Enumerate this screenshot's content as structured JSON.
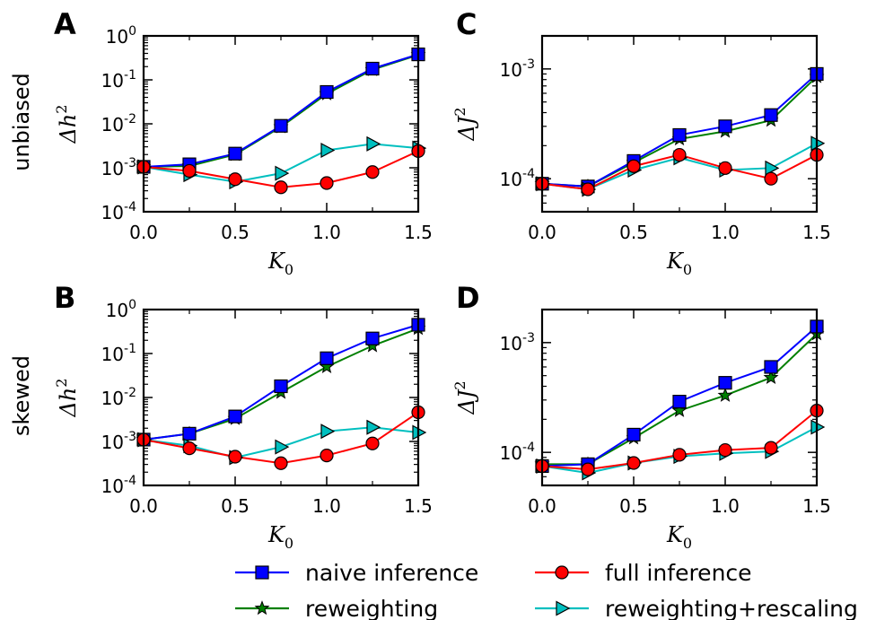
{
  "legend": [
    {
      "key": "naive",
      "label": "naive inference",
      "color": "#0000ff",
      "marker": "square"
    },
    {
      "key": "full",
      "label": "full inference",
      "color": "#ff0000",
      "marker": "circle"
    },
    {
      "key": "rew",
      "label": "reweighting",
      "color": "#007f00",
      "marker": "star"
    },
    {
      "key": "resc",
      "label": "reweighting+rescaling",
      "color": "#00bfbf",
      "marker": "triangle-right"
    }
  ],
  "rows": [
    {
      "label": "unbiased"
    },
    {
      "label": "skewed"
    }
  ],
  "chart_data": [
    {
      "panel": "A",
      "type": "line",
      "yscale": "log",
      "xlabel": "K",
      "xlabel_sub": "0",
      "ylabel": "Δh",
      "ylabel_sup": "2",
      "xlim": [
        0,
        1.5
      ],
      "ylim": [
        0.0001,
        1
      ],
      "xticks": [
        "0.0",
        "0.5",
        "1.0",
        "1.5"
      ],
      "yticks": [
        {
          "base": "10",
          "exp": "-4",
          "v": 0.0001
        },
        {
          "base": "10",
          "exp": "-3",
          "v": 0.001
        },
        {
          "base": "10",
          "exp": "-2",
          "v": 0.01
        },
        {
          "base": "10",
          "exp": "-1",
          "v": 0.1
        },
        {
          "base": "10",
          "exp": "0",
          "v": 1
        }
      ],
      "x": [
        0,
        0.25,
        0.5,
        0.75,
        1.0,
        1.25,
        1.5
      ],
      "series": [
        {
          "key": "rew",
          "values": [
            0.00105,
            0.0011,
            0.002,
            0.0085,
            0.048,
            0.17,
            0.37
          ]
        },
        {
          "key": "naive",
          "values": [
            0.00105,
            0.0012,
            0.0021,
            0.009,
            0.053,
            0.18,
            0.38
          ]
        },
        {
          "key": "resc",
          "values": [
            0.00105,
            0.0007,
            0.00048,
            0.00075,
            0.0025,
            0.0035,
            0.0028
          ]
        },
        {
          "key": "full",
          "values": [
            0.00105,
            0.00085,
            0.00055,
            0.00036,
            0.00045,
            0.0008,
            0.0024
          ]
        }
      ]
    },
    {
      "panel": "C",
      "type": "line",
      "yscale": "log",
      "xlabel": "K",
      "xlabel_sub": "0",
      "ylabel": "ΔJ",
      "ylabel_sup": "2",
      "xlim": [
        0,
        1.5
      ],
      "ylim": [
        5e-05,
        0.002
      ],
      "xticks": [
        "0.0",
        "0.5",
        "1.0",
        "1.5"
      ],
      "yticks": [
        {
          "base": "10",
          "exp": "-4",
          "v": 0.0001
        },
        {
          "base": "10",
          "exp": "-3",
          "v": 0.001
        }
      ],
      "x": [
        0,
        0.25,
        0.5,
        0.75,
        1.0,
        1.25,
        1.5
      ],
      "series": [
        {
          "key": "rew",
          "values": [
            9e-05,
            8.5e-05,
            0.00014,
            0.00023,
            0.00027,
            0.00034,
            0.00085
          ]
        },
        {
          "key": "naive",
          "values": [
            9e-05,
            8.5e-05,
            0.000145,
            0.00025,
            0.0003,
            0.00038,
            0.0009
          ]
        },
        {
          "key": "resc",
          "values": [
            9e-05,
            8e-05,
            0.00012,
            0.000155,
            0.00012,
            0.000125,
            0.00021
          ]
        },
        {
          "key": "full",
          "values": [
            9e-05,
            8e-05,
            0.00013,
            0.000165,
            0.000125,
            0.0001,
            0.000165
          ]
        }
      ]
    },
    {
      "panel": "B",
      "type": "line",
      "yscale": "log",
      "xlabel": "K",
      "xlabel_sub": "0",
      "ylabel": "Δh",
      "ylabel_sup": "2",
      "xlim": [
        0,
        1.5
      ],
      "ylim": [
        0.0001,
        1
      ],
      "xticks": [
        "0.0",
        "0.5",
        "1.0",
        "1.5"
      ],
      "yticks": [
        {
          "base": "10",
          "exp": "-4",
          "v": 0.0001
        },
        {
          "base": "10",
          "exp": "-3",
          "v": 0.001
        },
        {
          "base": "10",
          "exp": "-2",
          "v": 0.01
        },
        {
          "base": "10",
          "exp": "-1",
          "v": 0.1
        },
        {
          "base": "10",
          "exp": "0",
          "v": 1
        }
      ],
      "x": [
        0,
        0.25,
        0.5,
        0.75,
        1.0,
        1.25,
        1.5
      ],
      "series": [
        {
          "key": "rew",
          "values": [
            0.0011,
            0.0015,
            0.0033,
            0.013,
            0.05,
            0.15,
            0.37
          ]
        },
        {
          "key": "naive",
          "values": [
            0.0011,
            0.0015,
            0.0037,
            0.018,
            0.078,
            0.22,
            0.45
          ]
        },
        {
          "key": "resc",
          "values": [
            0.0011,
            0.0008,
            0.00043,
            0.00075,
            0.0017,
            0.0021,
            0.0016
          ]
        },
        {
          "key": "full",
          "values": [
            0.0011,
            0.0007,
            0.00045,
            0.00032,
            0.00048,
            0.0009,
            0.0046
          ]
        }
      ]
    },
    {
      "panel": "D",
      "type": "line",
      "yscale": "log",
      "xlabel": "K",
      "xlabel_sub": "0",
      "ylabel": "ΔJ",
      "ylabel_sup": "2",
      "xlim": [
        0,
        1.5
      ],
      "ylim": [
        5e-05,
        0.002
      ],
      "xticks": [
        "0.0",
        "0.5",
        "1.0",
        "1.5"
      ],
      "yticks": [
        {
          "base": "10",
          "exp": "-4",
          "v": 0.0001
        },
        {
          "base": "10",
          "exp": "-3",
          "v": 0.001
        }
      ],
      "x": [
        0,
        0.25,
        0.5,
        0.75,
        1.0,
        1.25,
        1.5
      ],
      "series": [
        {
          "key": "rew",
          "values": [
            7.8e-05,
            7.8e-05,
            0.000135,
            0.00024,
            0.00033,
            0.00048,
            0.0012
          ]
        },
        {
          "key": "naive",
          "values": [
            7.5e-05,
            7.8e-05,
            0.000145,
            0.00029,
            0.00043,
            0.0006,
            0.0014
          ]
        },
        {
          "key": "resc",
          "values": [
            7.5e-05,
            6.5e-05,
            8e-05,
            9.2e-05,
            9.8e-05,
            0.000102,
            0.00017
          ]
        },
        {
          "key": "full",
          "values": [
            7.5e-05,
            7e-05,
            8e-05,
            9.5e-05,
            0.000105,
            0.00011,
            0.00024
          ]
        }
      ]
    }
  ]
}
